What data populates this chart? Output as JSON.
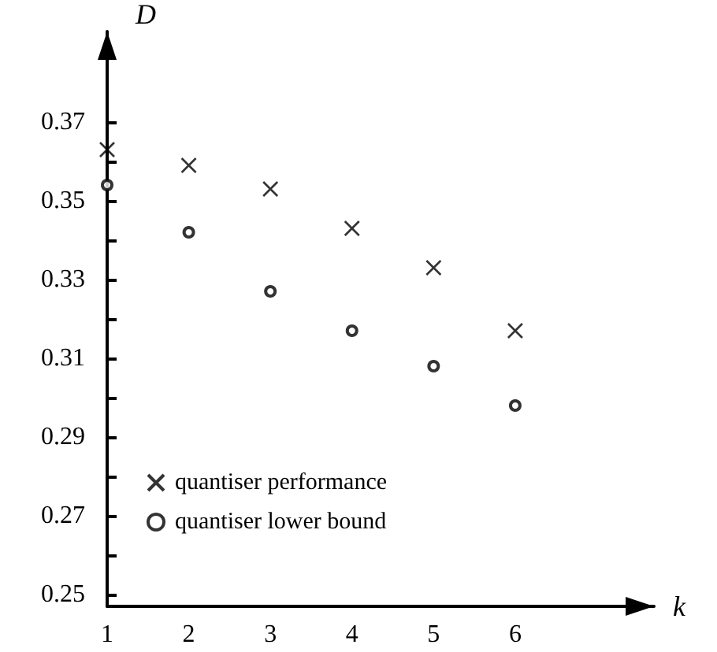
{
  "chart_data": {
    "type": "scatter",
    "xlabel": "k",
    "ylabel": "D",
    "x": [
      1,
      2,
      3,
      4,
      5,
      6
    ],
    "series": [
      {
        "name": "quantiser performance",
        "color": "#000000",
        "marker": "cross",
        "values": [
          0.363,
          0.359,
          0.353,
          0.343,
          0.333,
          0.317
        ]
      },
      {
        "name": "quantiser lower bound",
        "color": "#000000",
        "marker": "circle",
        "values": [
          0.354,
          0.342,
          0.327,
          0.317,
          0.308,
          0.298
        ]
      }
    ],
    "xlim": [
      1,
      7.7
    ],
    "xticks": [
      1,
      2,
      3,
      4,
      5,
      6
    ],
    "ylim": [
      0.247,
      0.393
    ],
    "yticks": [
      0.25,
      {
        "value": 0.26,
        "label": null
      },
      0.27,
      {
        "value": 0.28,
        "label": null
      },
      0.29,
      {
        "value": 0.3,
        "label": null
      },
      0.31,
      {
        "value": 0.32,
        "label": null
      },
      0.33,
      {
        "value": 0.34,
        "label": null
      },
      0.35,
      {
        "value": 0.36,
        "label": null
      },
      0.37
    ],
    "grid": false,
    "legend": "bottom left"
  }
}
